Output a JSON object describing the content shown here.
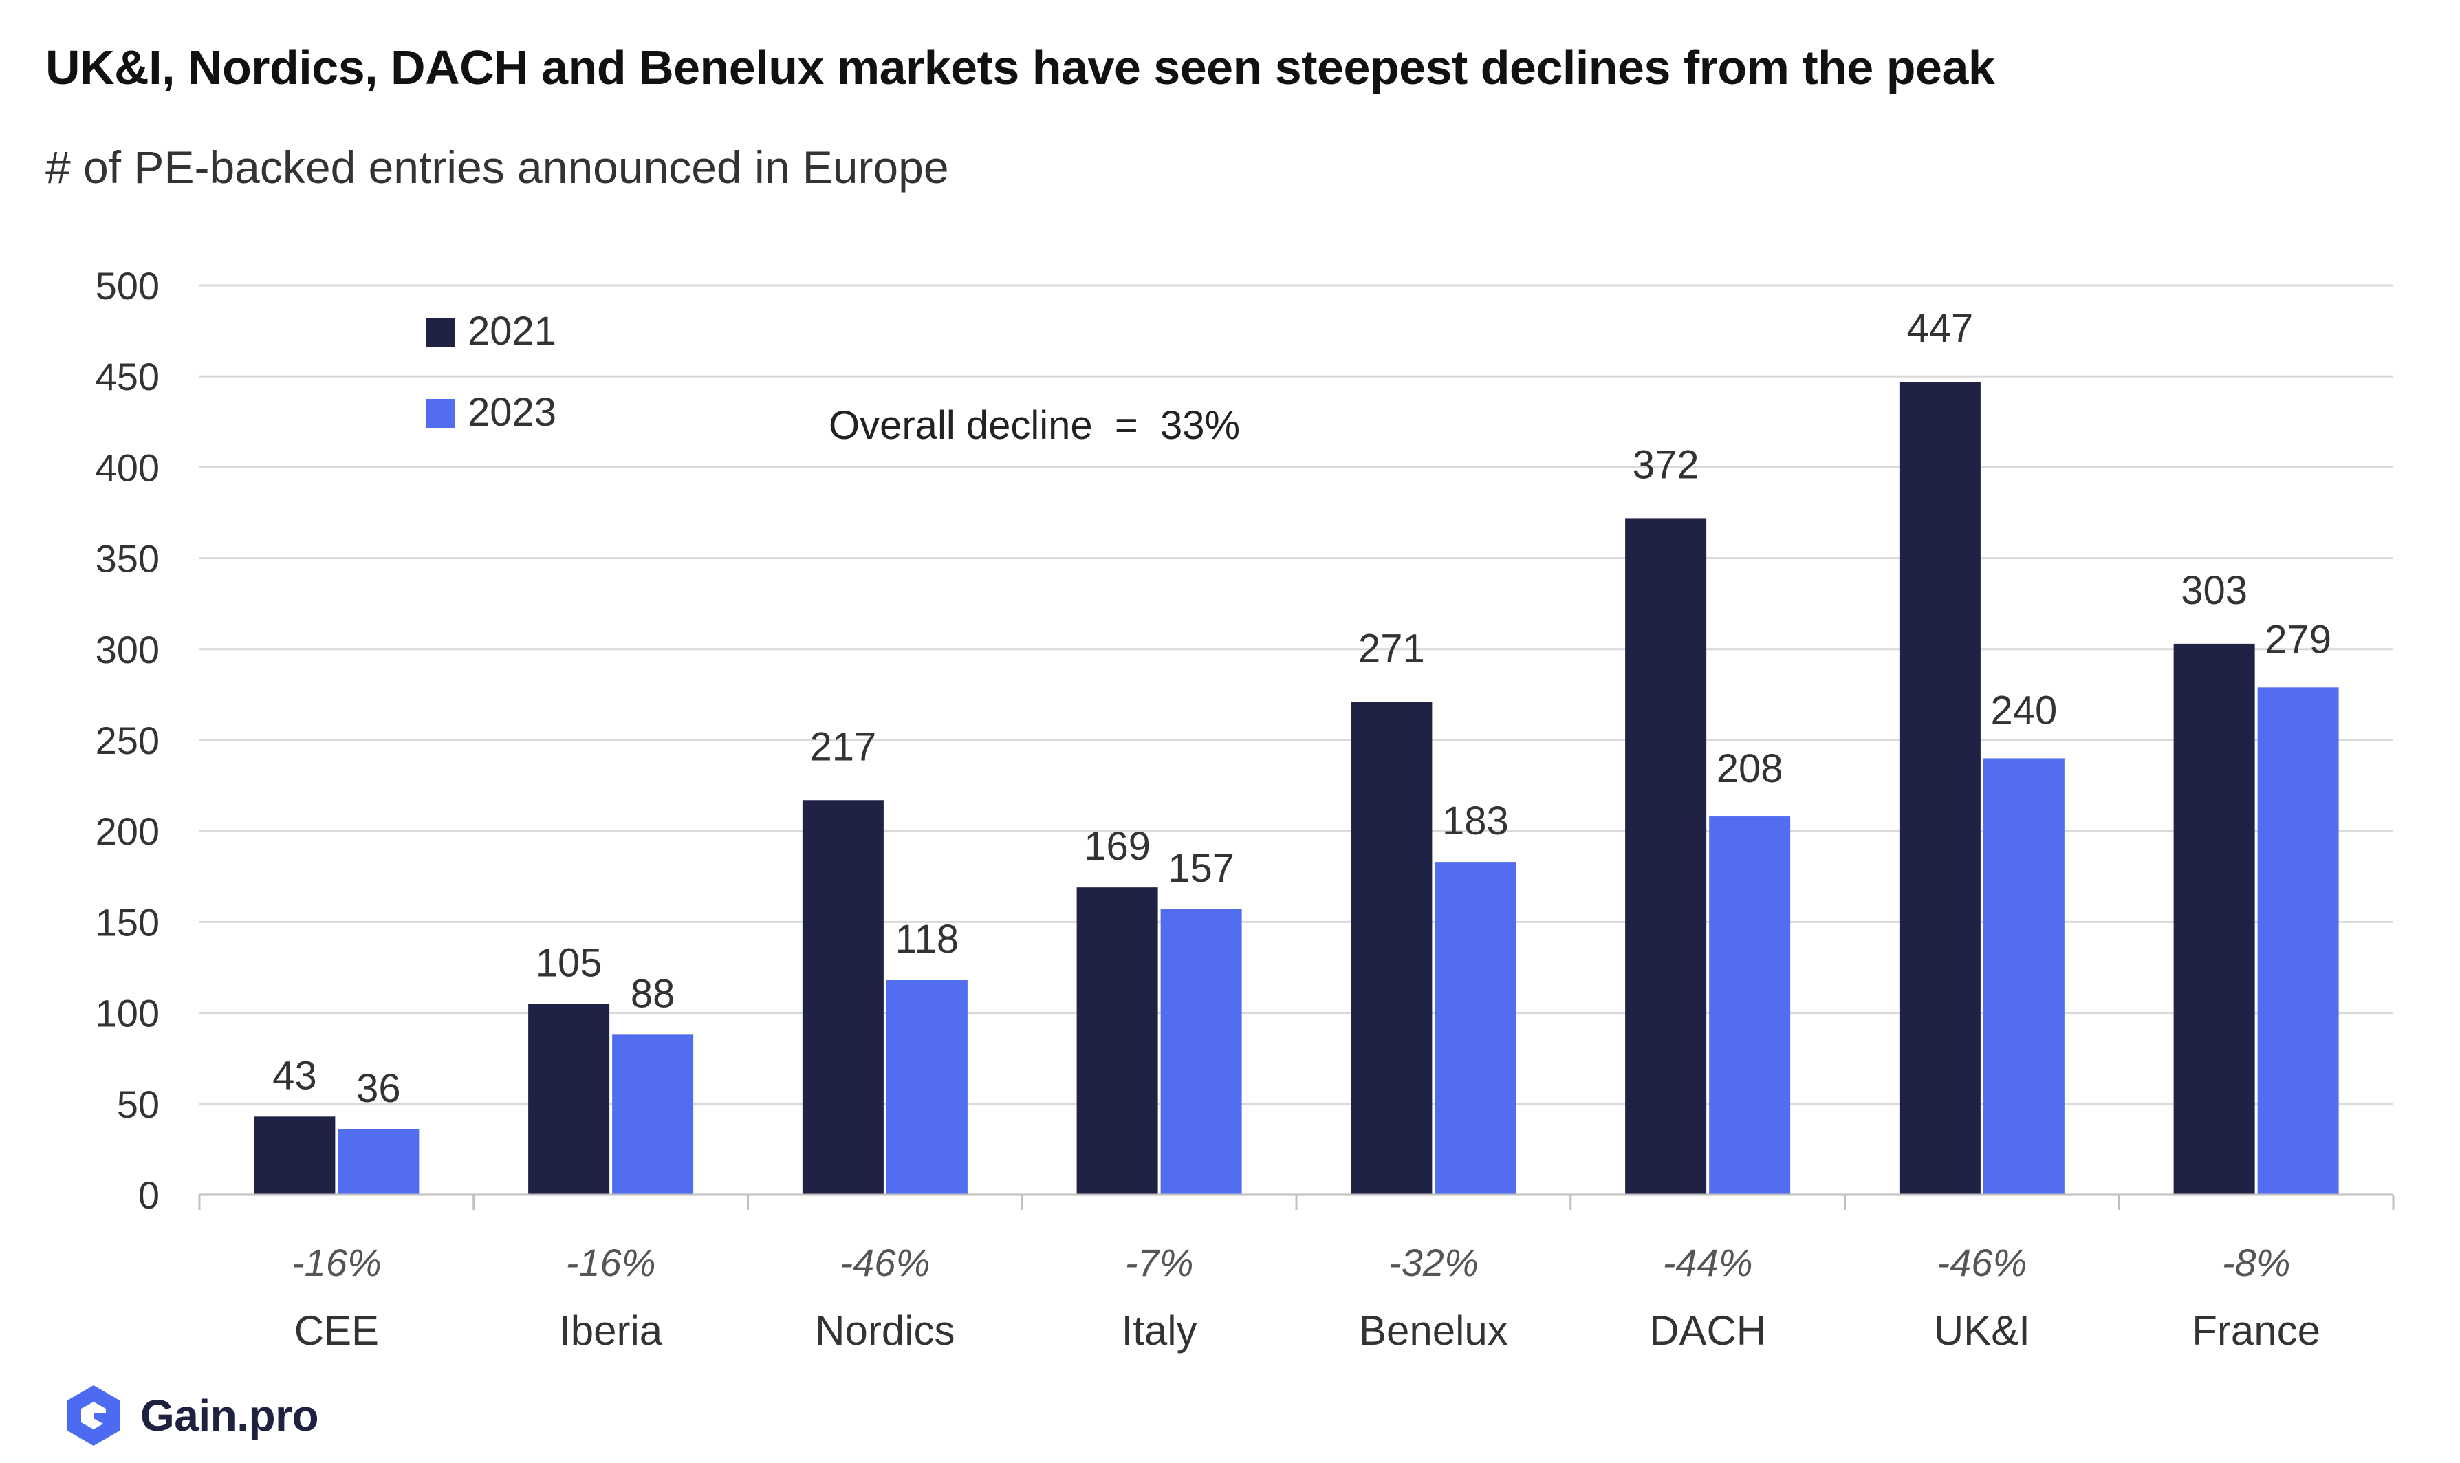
{
  "header": {
    "title": "UK&I, Nordics, DACH and Benelux markets have seen steepest declines from the peak",
    "subtitle": "# of PE-backed entries announced in Europe"
  },
  "branding": {
    "logo_text": "Gain.pro",
    "logo_icon": "gain-pro-logo-icon"
  },
  "colors": {
    "series_2021": "#1f2145",
    "series_2023": "#536df0",
    "grid": "#d9d9d9",
    "axis": "#bfbfbf",
    "text": "#333333",
    "logo": "#4d6bf0"
  },
  "chart_data": {
    "type": "bar",
    "title": "UK&I, Nordics, DACH and Benelux markets have seen steepest declines from the peak",
    "subtitle": "# of PE-backed entries announced in Europe",
    "xlabel": "",
    "ylabel": "",
    "ylim": [
      0,
      500
    ],
    "yticks": [
      0,
      50,
      100,
      150,
      200,
      250,
      300,
      350,
      400,
      450,
      500
    ],
    "grid": true,
    "legend_position": "top-left",
    "categories": [
      "CEE",
      "Iberia",
      "Nordics",
      "Italy",
      "Benelux",
      "DACH",
      "UK&I",
      "France"
    ],
    "series": [
      {
        "name": "2021",
        "values": [
          43,
          105,
          217,
          169,
          271,
          372,
          447,
          303
        ]
      },
      {
        "name": "2023",
        "values": [
          36,
          88,
          118,
          157,
          183,
          208,
          240,
          279
        ]
      }
    ],
    "change_labels": [
      "-16%",
      "-16%",
      "-46%",
      "-7%",
      "-32%",
      "-44%",
      "-46%",
      "-8%"
    ],
    "annotation": "Overall decline  =  33%"
  }
}
